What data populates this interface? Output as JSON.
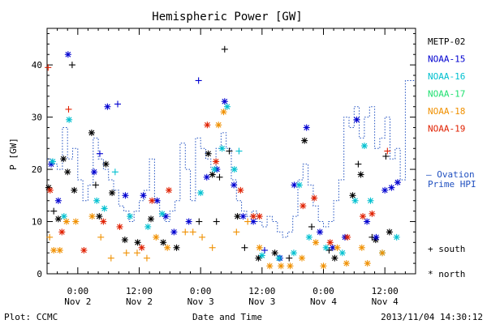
{
  "chart_data": {
    "type": "scatter",
    "title": "Hemispheric Power [GW]",
    "ylabel": "P [GW]",
    "xlabel": "Date and Time",
    "ylim": [
      0,
      47
    ],
    "yticks": [
      0,
      10,
      20,
      30,
      40
    ],
    "x_unit": "hours since Nov 1 18:00",
    "xlim": [
      0,
      72
    ],
    "xticks": [
      {
        "x": 6,
        "time": "0:00",
        "date": "Nov 2"
      },
      {
        "x": 18,
        "time": "12:00",
        "date": "Nov 2"
      },
      {
        "x": 30,
        "time": "0:00",
        "date": "Nov 3"
      },
      {
        "x": 42,
        "time": "12:00",
        "date": "Nov 3"
      },
      {
        "x": 54,
        "time": "0:00",
        "date": "Nov 4"
      },
      {
        "x": 66,
        "time": "12:00",
        "date": "Nov 4"
      }
    ],
    "grid": false,
    "legend_position": "right",
    "series": [
      {
        "name": "METP-02",
        "color": "#000000",
        "points": [
          {
            "x": 0.3,
            "y": 16.5,
            "m": "north"
          },
          {
            "x": 1.3,
            "y": 12,
            "m": "south"
          },
          {
            "x": 2.2,
            "y": 10.5,
            "m": "north"
          },
          {
            "x": 3.2,
            "y": 22,
            "m": "north"
          },
          {
            "x": 4,
            "y": 19.5,
            "m": "north"
          },
          {
            "x": 4.9,
            "y": 40,
            "m": "south"
          },
          {
            "x": 5.3,
            "y": 16,
            "m": "north"
          },
          {
            "x": 8.7,
            "y": 27,
            "m": "north"
          },
          {
            "x": 9.5,
            "y": 17,
            "m": "south"
          },
          {
            "x": 10.2,
            "y": 11,
            "m": "north"
          },
          {
            "x": 11.5,
            "y": 21,
            "m": "north"
          },
          {
            "x": 12.7,
            "y": 15.5,
            "m": "north"
          },
          {
            "x": 15.2,
            "y": 6.5,
            "m": "north"
          },
          {
            "x": 17.7,
            "y": 6,
            "m": "north"
          },
          {
            "x": 20.3,
            "y": 10.5,
            "m": "north"
          },
          {
            "x": 22.7,
            "y": 6,
            "m": "north"
          },
          {
            "x": 25.3,
            "y": 5,
            "m": "north"
          },
          {
            "x": 29.7,
            "y": 10,
            "m": "south"
          },
          {
            "x": 31.5,
            "y": 23,
            "m": "north"
          },
          {
            "x": 32.3,
            "y": 19,
            "m": "north"
          },
          {
            "x": 33.1,
            "y": 10,
            "m": "south"
          },
          {
            "x": 33.7,
            "y": 18.5,
            "m": "south"
          },
          {
            "x": 34.7,
            "y": 43,
            "m": "south"
          },
          {
            "x": 35.6,
            "y": 23.5,
            "m": "south"
          },
          {
            "x": 37.2,
            "y": 11,
            "m": "north"
          },
          {
            "x": 38.6,
            "y": 5,
            "m": "south"
          },
          {
            "x": 41.3,
            "y": 3,
            "m": "north"
          },
          {
            "x": 44.5,
            "y": 4,
            "m": "north"
          },
          {
            "x": 47.3,
            "y": 3,
            "m": "south"
          },
          {
            "x": 50.3,
            "y": 25.5,
            "m": "north"
          },
          {
            "x": 51.7,
            "y": 9,
            "m": "south"
          },
          {
            "x": 55.1,
            "y": 4.5,
            "m": "south"
          },
          {
            "x": 56.2,
            "y": 3,
            "m": "north"
          },
          {
            "x": 59.7,
            "y": 15,
            "m": "north"
          },
          {
            "x": 60.8,
            "y": 21,
            "m": "south"
          },
          {
            "x": 61.3,
            "y": 19,
            "m": "north"
          },
          {
            "x": 63.5,
            "y": 7,
            "m": "south"
          },
          {
            "x": 64.2,
            "y": 6.5,
            "m": "north"
          },
          {
            "x": 66.2,
            "y": 22.5,
            "m": "south"
          },
          {
            "x": 66.9,
            "y": 8,
            "m": "north"
          }
        ]
      },
      {
        "name": "NOAA-15",
        "color": "#0000d0",
        "points": [
          {
            "x": 0.8,
            "y": 21,
            "m": "north"
          },
          {
            "x": 2.2,
            "y": 14,
            "m": "north"
          },
          {
            "x": 4.1,
            "y": 42,
            "m": "north"
          },
          {
            "x": 9.2,
            "y": 19.5,
            "m": "north"
          },
          {
            "x": 10.3,
            "y": 23,
            "m": "south"
          },
          {
            "x": 11.8,
            "y": 32,
            "m": "north"
          },
          {
            "x": 13.8,
            "y": 32.5,
            "m": "south"
          },
          {
            "x": 15.3,
            "y": 15,
            "m": "north"
          },
          {
            "x": 18.8,
            "y": 15,
            "m": "north"
          },
          {
            "x": 21.5,
            "y": 14,
            "m": "north"
          },
          {
            "x": 23.2,
            "y": 11,
            "m": "north"
          },
          {
            "x": 24.8,
            "y": 8,
            "m": "north"
          },
          {
            "x": 27.7,
            "y": 10,
            "m": "north"
          },
          {
            "x": 29.6,
            "y": 37,
            "m": "south"
          },
          {
            "x": 31.2,
            "y": 18.5,
            "m": "north"
          },
          {
            "x": 33.2,
            "y": 20,
            "m": "north"
          },
          {
            "x": 34.7,
            "y": 33,
            "m": "north"
          },
          {
            "x": 36.5,
            "y": 17,
            "m": "north"
          },
          {
            "x": 38.3,
            "y": 11,
            "m": "north"
          },
          {
            "x": 40.3,
            "y": 10,
            "m": "north"
          },
          {
            "x": 42.5,
            "y": 4.5,
            "m": "south"
          },
          {
            "x": 45.5,
            "y": 3,
            "m": "north"
          },
          {
            "x": 48.3,
            "y": 17,
            "m": "north"
          },
          {
            "x": 50.7,
            "y": 28,
            "m": "north"
          },
          {
            "x": 53.3,
            "y": 8,
            "m": "north"
          },
          {
            "x": 55.8,
            "y": 5,
            "m": "north"
          },
          {
            "x": 58.2,
            "y": 7,
            "m": "north"
          },
          {
            "x": 60.5,
            "y": 29.5,
            "m": "north"
          },
          {
            "x": 62.5,
            "y": 10,
            "m": "north"
          },
          {
            "x": 64.3,
            "y": 7,
            "m": "north"
          },
          {
            "x": 66,
            "y": 16,
            "m": "north"
          },
          {
            "x": 67.3,
            "y": 16.5,
            "m": "north"
          },
          {
            "x": 68.5,
            "y": 17.5,
            "m": "north"
          }
        ]
      },
      {
        "name": "NOAA-16",
        "color": "#00c0d0",
        "points": [
          {
            "x": 1.1,
            "y": 21.5,
            "m": "north"
          },
          {
            "x": 3.3,
            "y": 11,
            "m": "north"
          },
          {
            "x": 4.3,
            "y": 29.5,
            "m": "north"
          },
          {
            "x": 9.7,
            "y": 14,
            "m": "north"
          },
          {
            "x": 11.2,
            "y": 12.5,
            "m": "north"
          },
          {
            "x": 13.3,
            "y": 19.5,
            "m": "south"
          },
          {
            "x": 16.2,
            "y": 11,
            "m": "north"
          },
          {
            "x": 19.7,
            "y": 9,
            "m": "north"
          },
          {
            "x": 22.5,
            "y": 11.5,
            "m": "north"
          },
          {
            "x": 30,
            "y": 15.5,
            "m": "north"
          },
          {
            "x": 32.7,
            "y": 20,
            "m": "north"
          },
          {
            "x": 34.2,
            "y": 24,
            "m": "north"
          },
          {
            "x": 35.2,
            "y": 32,
            "m": "north"
          },
          {
            "x": 36.6,
            "y": 20,
            "m": "north"
          },
          {
            "x": 37.5,
            "y": 23.5,
            "m": "south"
          },
          {
            "x": 42,
            "y": 3.5,
            "m": "north"
          },
          {
            "x": 45.3,
            "y": 3,
            "m": "north"
          },
          {
            "x": 48.2,
            "y": 4,
            "m": "north"
          },
          {
            "x": 49.3,
            "y": 17,
            "m": "north"
          },
          {
            "x": 51.2,
            "y": 7,
            "m": "north"
          },
          {
            "x": 54.5,
            "y": 5,
            "m": "north"
          },
          {
            "x": 57.7,
            "y": 4,
            "m": "north"
          },
          {
            "x": 60.2,
            "y": 14,
            "m": "north"
          },
          {
            "x": 62,
            "y": 24.5,
            "m": "north"
          },
          {
            "x": 63.2,
            "y": 14,
            "m": "north"
          },
          {
            "x": 65.5,
            "y": 4,
            "m": "north"
          },
          {
            "x": 68.3,
            "y": 7,
            "m": "north"
          }
        ]
      },
      {
        "name": "NOAA-17",
        "color": "#20e070",
        "points": []
      },
      {
        "name": "NOAA-18",
        "color": "#f09000",
        "points": [
          {
            "x": 0.5,
            "y": 7,
            "m": "south"
          },
          {
            "x": 1.3,
            "y": 4.5,
            "m": "north"
          },
          {
            "x": 2.5,
            "y": 4.5,
            "m": "north"
          },
          {
            "x": 3.8,
            "y": 10,
            "m": "north"
          },
          {
            "x": 5.6,
            "y": 10,
            "m": "north"
          },
          {
            "x": 8.8,
            "y": 11,
            "m": "north"
          },
          {
            "x": 10.5,
            "y": 7,
            "m": "south"
          },
          {
            "x": 12.5,
            "y": 3,
            "m": "south"
          },
          {
            "x": 15.5,
            "y": 4,
            "m": "south"
          },
          {
            "x": 17.6,
            "y": 4,
            "m": "south"
          },
          {
            "x": 19.5,
            "y": 3,
            "m": "south"
          },
          {
            "x": 21.3,
            "y": 7,
            "m": "north"
          },
          {
            "x": 23.5,
            "y": 5,
            "m": "north"
          },
          {
            "x": 27,
            "y": 8,
            "m": "south"
          },
          {
            "x": 28.5,
            "y": 8,
            "m": "south"
          },
          {
            "x": 30.3,
            "y": 7,
            "m": "south"
          },
          {
            "x": 32.3,
            "y": 5,
            "m": "south"
          },
          {
            "x": 33.5,
            "y": 28.5,
            "m": "north"
          },
          {
            "x": 34.5,
            "y": 31,
            "m": "north"
          },
          {
            "x": 37,
            "y": 8,
            "m": "south"
          },
          {
            "x": 39.2,
            "y": 10,
            "m": "south"
          },
          {
            "x": 41.5,
            "y": 5,
            "m": "north"
          },
          {
            "x": 43.5,
            "y": 1.5,
            "m": "north"
          },
          {
            "x": 45.7,
            "y": 1.5,
            "m": "north"
          },
          {
            "x": 47.5,
            "y": 1.5,
            "m": "north"
          },
          {
            "x": 49.8,
            "y": 3,
            "m": "north"
          },
          {
            "x": 52.5,
            "y": 6,
            "m": "north"
          },
          {
            "x": 54,
            "y": 1.5,
            "m": "north"
          },
          {
            "x": 56.7,
            "y": 5,
            "m": "north"
          },
          {
            "x": 58.5,
            "y": 2,
            "m": "north"
          },
          {
            "x": 61.5,
            "y": 5,
            "m": "north"
          },
          {
            "x": 62.6,
            "y": 2,
            "m": "north"
          },
          {
            "x": 65.5,
            "y": 4,
            "m": "north"
          }
        ]
      },
      {
        "name": "NOAA-19",
        "color": "#e02000",
        "points": [
          {
            "x": 0.2,
            "y": 39.5,
            "m": "south"
          },
          {
            "x": 0.6,
            "y": 16,
            "m": "north"
          },
          {
            "x": 2.9,
            "y": 8,
            "m": "north"
          },
          {
            "x": 4.2,
            "y": 31.5,
            "m": "south"
          },
          {
            "x": 7.2,
            "y": 4.5,
            "m": "north"
          },
          {
            "x": 11,
            "y": 10,
            "m": "north"
          },
          {
            "x": 14.2,
            "y": 9,
            "m": "north"
          },
          {
            "x": 18.5,
            "y": 5,
            "m": "north"
          },
          {
            "x": 20.5,
            "y": 14,
            "m": "north"
          },
          {
            "x": 23.8,
            "y": 16,
            "m": "north"
          },
          {
            "x": 31.3,
            "y": 28.5,
            "m": "north"
          },
          {
            "x": 33,
            "y": 21.5,
            "m": "north"
          },
          {
            "x": 37.8,
            "y": 16,
            "m": "north"
          },
          {
            "x": 40.3,
            "y": 11,
            "m": "north"
          },
          {
            "x": 41.5,
            "y": 11,
            "m": "north"
          },
          {
            "x": 50,
            "y": 13,
            "m": "north"
          },
          {
            "x": 52.2,
            "y": 14.5,
            "m": "north"
          },
          {
            "x": 55.3,
            "y": 6,
            "m": "north"
          },
          {
            "x": 58.7,
            "y": 7,
            "m": "north"
          },
          {
            "x": 61.7,
            "y": 11,
            "m": "north"
          },
          {
            "x": 63.5,
            "y": 11.5,
            "m": "north"
          },
          {
            "x": 66.5,
            "y": 23.5,
            "m": "south"
          }
        ]
      }
    ],
    "ovation_hpi": {
      "name": "Ovation Prime HPI",
      "color": "#2050c0",
      "steps": [
        [
          0,
          22
        ],
        [
          1,
          21
        ],
        [
          2,
          20
        ],
        [
          3,
          28
        ],
        [
          4,
          22
        ],
        [
          5,
          24
        ],
        [
          6,
          18
        ],
        [
          7,
          14
        ],
        [
          8,
          17
        ],
        [
          9,
          26
        ],
        [
          10,
          22
        ],
        [
          11,
          20
        ],
        [
          12,
          18
        ],
        [
          13,
          16
        ],
        [
          14,
          13
        ],
        [
          15,
          12
        ],
        [
          16,
          10
        ],
        [
          17,
          12
        ],
        [
          18,
          14
        ],
        [
          19,
          16
        ],
        [
          20,
          22
        ],
        [
          21,
          14
        ],
        [
          22,
          11
        ],
        [
          23,
          10
        ],
        [
          24,
          12
        ],
        [
          25,
          14
        ],
        [
          26,
          25
        ],
        [
          27,
          20
        ],
        [
          28,
          14
        ],
        [
          29,
          26
        ],
        [
          30,
          24
        ],
        [
          31,
          22
        ],
        [
          32,
          20
        ],
        [
          33,
          24
        ],
        [
          34,
          27
        ],
        [
          35,
          24
        ],
        [
          36,
          18
        ],
        [
          37,
          14
        ],
        [
          38,
          12
        ],
        [
          39,
          11
        ],
        [
          40,
          12
        ],
        [
          41,
          10
        ],
        [
          42,
          9
        ],
        [
          43,
          11
        ],
        [
          44,
          10
        ],
        [
          45,
          8
        ],
        [
          46,
          7
        ],
        [
          47,
          8
        ],
        [
          48,
          11
        ],
        [
          49,
          18
        ],
        [
          50,
          21
        ],
        [
          51,
          17
        ],
        [
          52,
          13
        ],
        [
          53,
          10
        ],
        [
          54,
          9
        ],
        [
          55,
          10
        ],
        [
          56,
          14
        ],
        [
          57,
          18
        ],
        [
          58,
          30
        ],
        [
          59,
          28
        ],
        [
          60,
          32
        ],
        [
          61,
          26
        ],
        [
          62,
          30
        ],
        [
          63,
          32
        ],
        [
          64,
          24
        ],
        [
          65,
          26
        ],
        [
          66,
          30
        ],
        [
          67,
          22
        ],
        [
          68,
          24
        ],
        [
          69,
          18
        ],
        [
          70,
          37
        ],
        [
          71,
          37
        ]
      ]
    }
  },
  "legend_extra": {
    "ovation_line1": "— Ovation",
    "ovation_line2": "Prime HPI",
    "south_label": "+ south",
    "north_label": "* north"
  },
  "footer": {
    "plot_credit": "Plot: CCMC",
    "timestamp": "2013/11/04 14:30:12"
  }
}
